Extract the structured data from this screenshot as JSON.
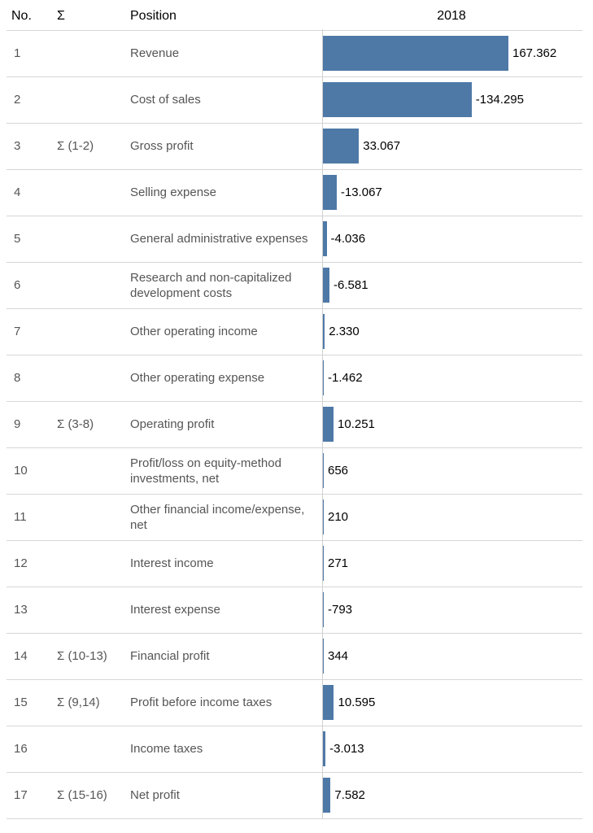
{
  "header": {
    "no": "No.",
    "sigma": "Σ",
    "position": "Position",
    "year": "2018"
  },
  "chart_data": {
    "type": "bar",
    "orientation": "horizontal",
    "categories": [
      "Revenue",
      "Cost of sales",
      "Gross profit",
      "Selling expense",
      "General administrative expenses",
      "Research and non-capitalized development costs",
      "Other operating income",
      "Other operating expense",
      "Operating profit",
      "Profit/loss on equity-method investments, net",
      "Other financial income/expense, net",
      "Interest income",
      "Interest expense",
      "Financial profit",
      "Profit before income taxes",
      "Income taxes",
      "Net profit"
    ],
    "series": [
      {
        "name": "2018",
        "values": [
          167.362,
          -134.295,
          33.067,
          -13.067,
          -4.036,
          -6.581,
          2.33,
          -1.462,
          10.251,
          0.656,
          0.21,
          0.271,
          -0.793,
          0.344,
          10.595,
          -3.013,
          7.582
        ]
      }
    ],
    "bar_color": "#4e79a7"
  },
  "rows": [
    {
      "no": "1",
      "sigma": "",
      "position": "Revenue",
      "label": "167.362"
    },
    {
      "no": "2",
      "sigma": "",
      "position": "Cost of sales",
      "label": "-134.295"
    },
    {
      "no": "3",
      "sigma": "Σ (1-2)",
      "position": "Gross profit",
      "label": "33.067"
    },
    {
      "no": "4",
      "sigma": "",
      "position": "Selling expense",
      "label": "-13.067"
    },
    {
      "no": "5",
      "sigma": "",
      "position": "General administrative expenses",
      "label": "-4.036"
    },
    {
      "no": "6",
      "sigma": "",
      "position": "Research and non-capitalized development costs",
      "label": "-6.581"
    },
    {
      "no": "7",
      "sigma": "",
      "position": "Other operating income",
      "label": "2.330"
    },
    {
      "no": "8",
      "sigma": "",
      "position": "Other operating expense",
      "label": "-1.462"
    },
    {
      "no": "9",
      "sigma": "Σ (3-8)",
      "position": "Operating profit",
      "label": "10.251"
    },
    {
      "no": "10",
      "sigma": "",
      "position": "Profit/loss on equity-method investments, net",
      "label": "656"
    },
    {
      "no": "11",
      "sigma": "",
      "position": "Other financial income/expense, net",
      "label": "210"
    },
    {
      "no": "12",
      "sigma": "",
      "position": "Interest income",
      "label": "271"
    },
    {
      "no": "13",
      "sigma": "",
      "position": "Interest expense",
      "label": "-793"
    },
    {
      "no": "14",
      "sigma": "Σ (10-13)",
      "position": "Financial profit",
      "label": "344"
    },
    {
      "no": "15",
      "sigma": "Σ (9,14)",
      "position": "Profit before income taxes",
      "label": "10.595"
    },
    {
      "no": "16",
      "sigma": "",
      "position": "Income taxes",
      "label": "-3.013"
    },
    {
      "no": "17",
      "sigma": "Σ (15-16)",
      "position": "Net profit",
      "label": "7.582"
    }
  ]
}
